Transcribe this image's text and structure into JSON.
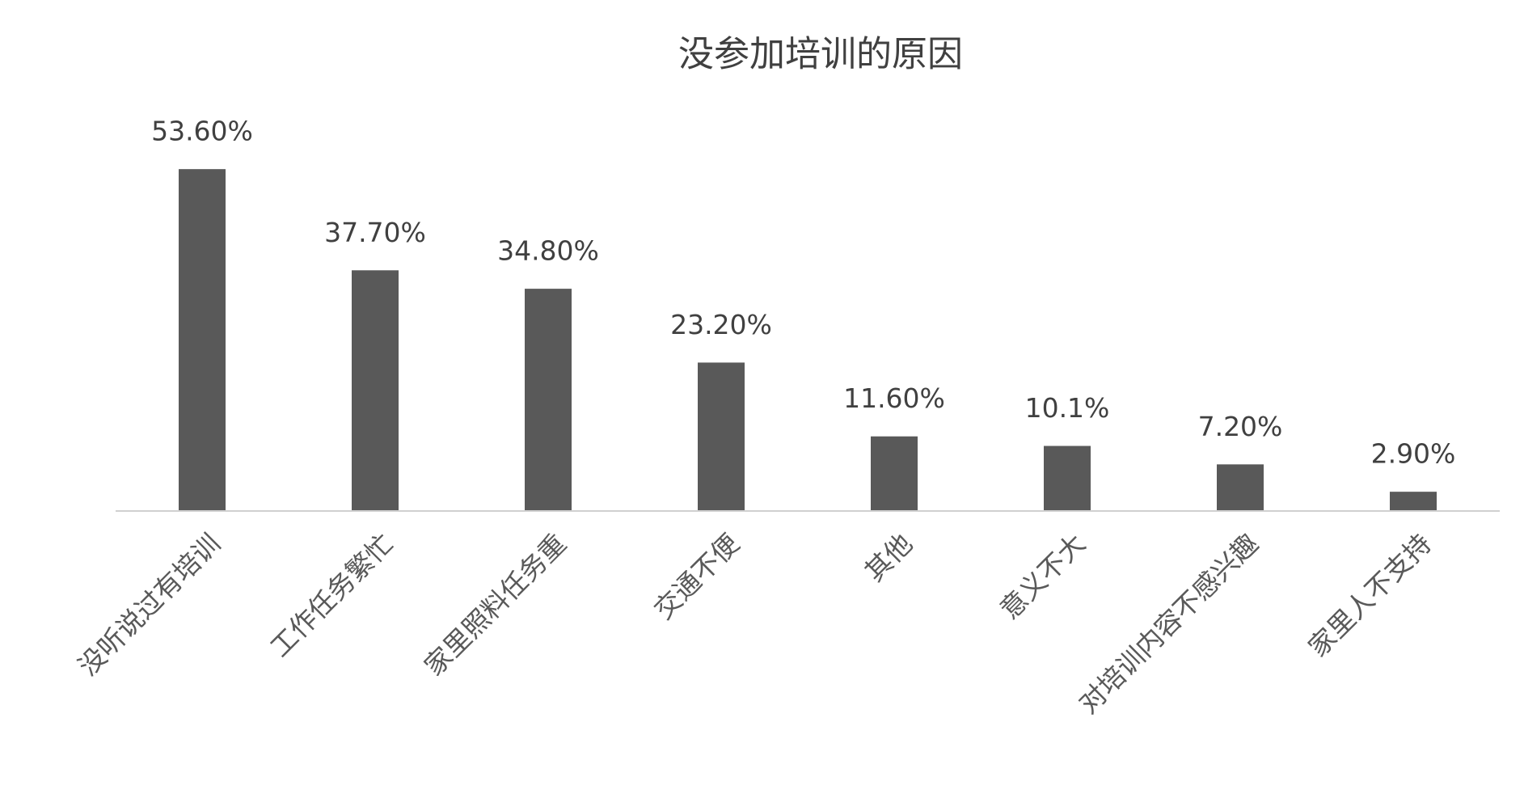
{
  "chart_data": {
    "type": "bar",
    "title": "没参加培训的原因",
    "categories": [
      "没听说过有培训",
      "工作任务繁忙",
      "家里照料任务重",
      "交通不便",
      "其他",
      "意义不大",
      "对培训内容不感兴趣",
      "家里人不支持"
    ],
    "values": [
      53.6,
      37.7,
      34.8,
      23.2,
      11.6,
      10.1,
      7.2,
      2.9
    ],
    "value_labels": [
      "53.60%",
      "37.70%",
      "34.80%",
      "23.20%",
      "11.60%",
      "10.1%",
      "7.20%",
      "2.90%"
    ],
    "color": "#595959"
  }
}
